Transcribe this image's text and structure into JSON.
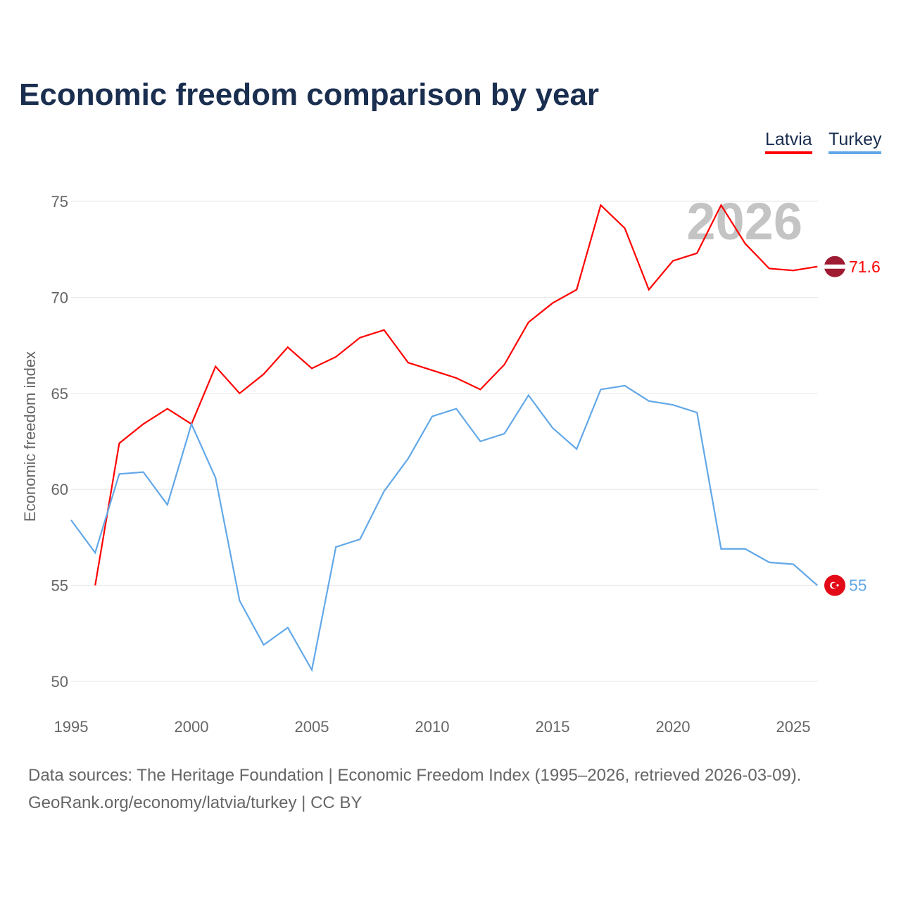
{
  "title": "Economic freedom comparison by year",
  "footer": {
    "line1": "Data sources: The Heritage Foundation | Economic Freedom Index (1995–2026, retrieved 2026-03-09).",
    "line2": "GeoRank.org/economy/latvia/turkey | CC BY"
  },
  "chart_data": {
    "type": "line",
    "title": "Economic freedom comparison by year",
    "ylabel": "Economic freedom index",
    "xlabel": "",
    "year_watermark": "2026",
    "xlim": [
      1995,
      2026
    ],
    "ylim": [
      50,
      75
    ],
    "xticks": [
      "1995",
      "2000",
      "2005",
      "2010",
      "2015",
      "2020",
      "2025"
    ],
    "yticks": [
      "50",
      "55",
      "60",
      "65",
      "70",
      "75"
    ],
    "grid": true,
    "legend_position": "top-right",
    "series": [
      {
        "name": "Latvia",
        "color": "#ff0000",
        "flag": "latvia-flag",
        "end_label": "71.6",
        "x": [
          1996,
          1997,
          1998,
          1999,
          2000,
          2001,
          2002,
          2003,
          2004,
          2005,
          2006,
          2007,
          2008,
          2009,
          2010,
          2011,
          2012,
          2013,
          2014,
          2015,
          2016,
          2017,
          2018,
          2019,
          2020,
          2021,
          2022,
          2023,
          2024,
          2025,
          2026
        ],
        "values": [
          55.0,
          62.4,
          63.4,
          64.2,
          63.4,
          66.4,
          65.0,
          66.0,
          67.4,
          66.3,
          66.9,
          67.9,
          68.3,
          66.6,
          66.2,
          65.8,
          65.2,
          66.5,
          68.7,
          69.7,
          70.4,
          74.8,
          73.6,
          70.4,
          71.9,
          72.3,
          74.8,
          72.8,
          71.5,
          71.4,
          71.6
        ]
      },
      {
        "name": "Turkey",
        "color": "#62a8e8",
        "flag": "turkey-flag",
        "end_label": "55",
        "x": [
          1995,
          1996,
          1997,
          1998,
          1999,
          2000,
          2001,
          2002,
          2003,
          2004,
          2005,
          2006,
          2007,
          2008,
          2009,
          2010,
          2011,
          2012,
          2013,
          2014,
          2015,
          2016,
          2017,
          2018,
          2019,
          2020,
          2021,
          2022,
          2023,
          2024,
          2025,
          2026
        ],
        "values": [
          58.4,
          56.7,
          60.8,
          60.9,
          59.2,
          63.4,
          60.6,
          54.2,
          51.9,
          52.8,
          50.6,
          57.0,
          57.4,
          59.9,
          61.6,
          63.8,
          64.2,
          62.5,
          62.9,
          64.9,
          63.2,
          62.1,
          65.2,
          65.4,
          64.6,
          64.4,
          64.0,
          56.9,
          56.9,
          56.2,
          56.1,
          55.0
        ]
      }
    ]
  }
}
